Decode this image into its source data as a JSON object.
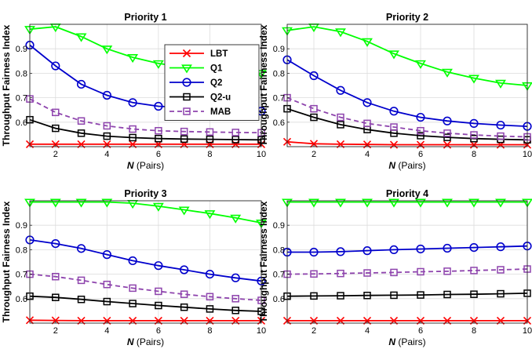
{
  "chart_data": [
    {
      "type": "line",
      "title": "Priority 1",
      "xlabel_var": "N",
      "xlabel_unit": " (Pairs)",
      "ylabel": "Throughput Fairness Index",
      "xlim": [
        1,
        10
      ],
      "ylim": [
        0.5,
        1.0
      ],
      "xticks": [
        2,
        4,
        6,
        8,
        10
      ],
      "yticks": [
        0.6,
        0.7,
        0.8,
        0.9
      ],
      "grid": true,
      "legend": "inside-top-right",
      "x": [
        1,
        2,
        3,
        4,
        5,
        6,
        7,
        8,
        9,
        10
      ],
      "series": [
        {
          "name": "LBT",
          "color": "#ff0000",
          "marker": "x",
          "dash": "solid",
          "values": [
            0.51,
            0.51,
            0.51,
            0.51,
            0.51,
            0.51,
            0.51,
            0.51,
            0.51,
            0.51
          ]
        },
        {
          "name": "Q1",
          "color": "#00ff00",
          "marker": "triangle",
          "dash": "solid",
          "values": [
            0.98,
            0.99,
            0.95,
            0.9,
            0.865,
            0.84,
            0.825,
            0.815,
            0.805,
            0.8
          ]
        },
        {
          "name": "Q2",
          "color": "#0000cc",
          "marker": "circle",
          "dash": "solid",
          "values": [
            0.915,
            0.83,
            0.755,
            0.71,
            0.68,
            0.665,
            0.66,
            0.652,
            0.648,
            0.645
          ]
        },
        {
          "name": "Q2-u",
          "color": "#000000",
          "marker": "square",
          "dash": "solid",
          "values": [
            0.61,
            0.575,
            0.555,
            0.543,
            0.537,
            0.533,
            0.531,
            0.53,
            0.529,
            0.528
          ]
        },
        {
          "name": "MAB",
          "color": "#8e44ad",
          "marker": "square",
          "dash": "dashed",
          "values": [
            0.695,
            0.64,
            0.605,
            0.585,
            0.572,
            0.565,
            0.562,
            0.56,
            0.558,
            0.557
          ]
        }
      ]
    },
    {
      "type": "line",
      "title": "Priority 2",
      "xlabel_var": "N",
      "xlabel_unit": " (Pairs)",
      "ylabel": "Throughput Fairness Index",
      "xlim": [
        1,
        10
      ],
      "ylim": [
        0.5,
        1.0
      ],
      "xticks": [
        2,
        4,
        6,
        8,
        10
      ],
      "yticks": [
        0.6,
        0.7,
        0.8,
        0.9
      ],
      "grid": true,
      "x": [
        1,
        2,
        3,
        4,
        5,
        6,
        7,
        8,
        9,
        10
      ],
      "series": [
        {
          "name": "LBT",
          "color": "#ff0000",
          "marker": "x",
          "dash": "solid",
          "values": [
            0.52,
            0.512,
            0.51,
            0.509,
            0.508,
            0.508,
            0.508,
            0.508,
            0.508,
            0.508
          ]
        },
        {
          "name": "Q1",
          "color": "#00ff00",
          "marker": "triangle",
          "dash": "solid",
          "values": [
            0.975,
            0.99,
            0.97,
            0.93,
            0.88,
            0.84,
            0.805,
            0.78,
            0.76,
            0.75
          ]
        },
        {
          "name": "Q2",
          "color": "#0000cc",
          "marker": "circle",
          "dash": "solid",
          "values": [
            0.855,
            0.79,
            0.73,
            0.68,
            0.645,
            0.62,
            0.605,
            0.595,
            0.588,
            0.583
          ]
        },
        {
          "name": "Q2-u",
          "color": "#000000",
          "marker": "square",
          "dash": "solid",
          "values": [
            0.655,
            0.62,
            0.59,
            0.57,
            0.555,
            0.545,
            0.538,
            0.533,
            0.53,
            0.528
          ]
        },
        {
          "name": "MAB",
          "color": "#8e44ad",
          "marker": "square",
          "dash": "dashed",
          "values": [
            0.7,
            0.655,
            0.62,
            0.595,
            0.58,
            0.565,
            0.555,
            0.548,
            0.543,
            0.54
          ]
        }
      ]
    },
    {
      "type": "line",
      "title": "Priority 3",
      "xlabel_var": "N",
      "xlabel_unit": " (Pairs)",
      "ylabel": "Throughput Fairness Index",
      "xlim": [
        1,
        10
      ],
      "ylim": [
        0.5,
        1.0
      ],
      "xticks": [
        2,
        4,
        6,
        8,
        10
      ],
      "yticks": [
        0.6,
        0.7,
        0.8,
        0.9
      ],
      "grid": true,
      "x": [
        1,
        2,
        3,
        4,
        5,
        6,
        7,
        8,
        9,
        10
      ],
      "series": [
        {
          "name": "LBT",
          "color": "#ff0000",
          "marker": "x",
          "dash": "solid",
          "values": [
            0.512,
            0.511,
            0.51,
            0.51,
            0.51,
            0.51,
            0.51,
            0.51,
            0.51,
            0.51
          ]
        },
        {
          "name": "Q1",
          "color": "#00ff00",
          "marker": "triangle",
          "dash": "solid",
          "values": [
            0.995,
            0.995,
            0.995,
            0.995,
            0.99,
            0.978,
            0.963,
            0.948,
            0.93,
            0.91
          ]
        },
        {
          "name": "Q2",
          "color": "#0000cc",
          "marker": "circle",
          "dash": "solid",
          "values": [
            0.84,
            0.825,
            0.805,
            0.78,
            0.755,
            0.735,
            0.718,
            0.7,
            0.685,
            0.672
          ]
        },
        {
          "name": "Q2-u",
          "color": "#000000",
          "marker": "square",
          "dash": "solid",
          "values": [
            0.61,
            0.605,
            0.597,
            0.588,
            0.58,
            0.572,
            0.565,
            0.558,
            0.552,
            0.548
          ]
        },
        {
          "name": "MAB",
          "color": "#8e44ad",
          "marker": "square",
          "dash": "dashed",
          "values": [
            0.7,
            0.69,
            0.675,
            0.658,
            0.643,
            0.63,
            0.618,
            0.608,
            0.6,
            0.593
          ]
        }
      ]
    },
    {
      "type": "line",
      "title": "Priority 4",
      "xlabel_var": "N",
      "xlabel_unit": " (Pairs)",
      "ylabel": "Throughput Fairness Index",
      "xlim": [
        1,
        10
      ],
      "ylim": [
        0.5,
        1.0
      ],
      "xticks": [
        2,
        4,
        6,
        8,
        10
      ],
      "yticks": [
        0.6,
        0.7,
        0.8,
        0.9
      ],
      "grid": true,
      "x": [
        1,
        2,
        3,
        4,
        5,
        6,
        7,
        8,
        9,
        10
      ],
      "series": [
        {
          "name": "LBT",
          "color": "#ff0000",
          "marker": "x",
          "dash": "solid",
          "values": [
            0.51,
            0.51,
            0.51,
            0.51,
            0.51,
            0.51,
            0.51,
            0.51,
            0.51,
            0.51
          ]
        },
        {
          "name": "Q1",
          "color": "#00ff00",
          "marker": "triangle",
          "dash": "solid",
          "values": [
            0.995,
            0.995,
            0.995,
            0.995,
            0.995,
            0.995,
            0.995,
            0.995,
            0.995,
            0.995
          ]
        },
        {
          "name": "Q2",
          "color": "#0000cc",
          "marker": "circle",
          "dash": "solid",
          "values": [
            0.79,
            0.79,
            0.792,
            0.796,
            0.8,
            0.803,
            0.806,
            0.809,
            0.812,
            0.815
          ]
        },
        {
          "name": "Q2-u",
          "color": "#000000",
          "marker": "square",
          "dash": "solid",
          "values": [
            0.61,
            0.611,
            0.612,
            0.613,
            0.614,
            0.615,
            0.617,
            0.618,
            0.62,
            0.622
          ]
        },
        {
          "name": "MAB",
          "color": "#8e44ad",
          "marker": "square",
          "dash": "dashed",
          "values": [
            0.7,
            0.701,
            0.703,
            0.705,
            0.707,
            0.71,
            0.712,
            0.715,
            0.718,
            0.721
          ]
        }
      ]
    }
  ]
}
